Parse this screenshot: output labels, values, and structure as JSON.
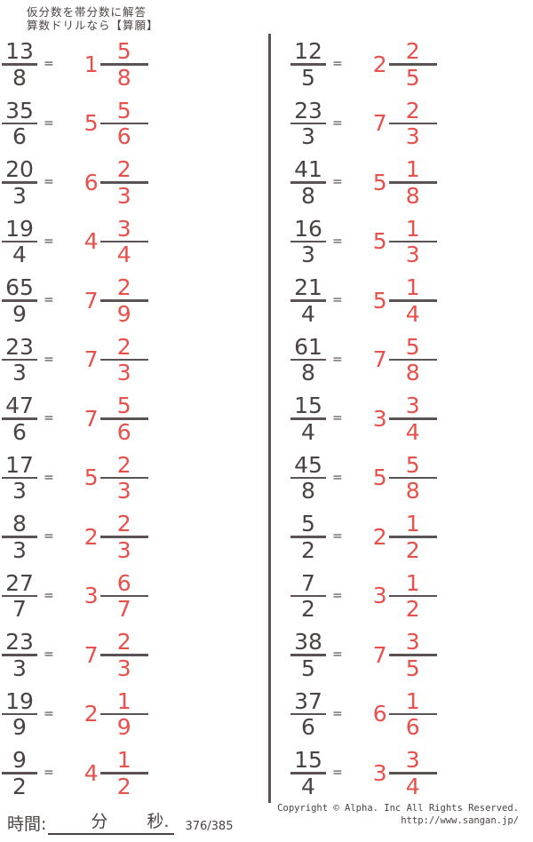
{
  "header": {
    "line1": "仮分数を帯分数に解答",
    "line2": "算数ドリルなら【算願】"
  },
  "labels": {
    "equals": "="
  },
  "colors": {
    "ink": "#4b4343",
    "answer_red": "#e8504b"
  },
  "columns": [
    {
      "side": "left",
      "problems": [
        {
          "q_num": "13",
          "q_den": "8",
          "a_whole": "1",
          "a_num": "5",
          "a_den": "8"
        },
        {
          "q_num": "35",
          "q_den": "6",
          "a_whole": "5",
          "a_num": "5",
          "a_den": "6"
        },
        {
          "q_num": "20",
          "q_den": "3",
          "a_whole": "6",
          "a_num": "2",
          "a_den": "3"
        },
        {
          "q_num": "19",
          "q_den": "4",
          "a_whole": "4",
          "a_num": "3",
          "a_den": "4"
        },
        {
          "q_num": "65",
          "q_den": "9",
          "a_whole": "7",
          "a_num": "2",
          "a_den": "9"
        },
        {
          "q_num": "23",
          "q_den": "3",
          "a_whole": "7",
          "a_num": "2",
          "a_den": "3"
        },
        {
          "q_num": "47",
          "q_den": "6",
          "a_whole": "7",
          "a_num": "5",
          "a_den": "6"
        },
        {
          "q_num": "17",
          "q_den": "3",
          "a_whole": "5",
          "a_num": "2",
          "a_den": "3"
        },
        {
          "q_num": "8",
          "q_den": "3",
          "a_whole": "2",
          "a_num": "2",
          "a_den": "3"
        },
        {
          "q_num": "27",
          "q_den": "7",
          "a_whole": "3",
          "a_num": "6",
          "a_den": "7"
        },
        {
          "q_num": "23",
          "q_den": "3",
          "a_whole": "7",
          "a_num": "2",
          "a_den": "3"
        },
        {
          "q_num": "19",
          "q_den": "9",
          "a_whole": "2",
          "a_num": "1",
          "a_den": "9"
        },
        {
          "q_num": "9",
          "q_den": "2",
          "a_whole": "4",
          "a_num": "1",
          "a_den": "2"
        }
      ]
    },
    {
      "side": "right",
      "problems": [
        {
          "q_num": "12",
          "q_den": "5",
          "a_whole": "2",
          "a_num": "2",
          "a_den": "5"
        },
        {
          "q_num": "23",
          "q_den": "3",
          "a_whole": "7",
          "a_num": "2",
          "a_den": "3"
        },
        {
          "q_num": "41",
          "q_den": "8",
          "a_whole": "5",
          "a_num": "1",
          "a_den": "8"
        },
        {
          "q_num": "16",
          "q_den": "3",
          "a_whole": "5",
          "a_num": "1",
          "a_den": "3"
        },
        {
          "q_num": "21",
          "q_den": "4",
          "a_whole": "5",
          "a_num": "1",
          "a_den": "4"
        },
        {
          "q_num": "61",
          "q_den": "8",
          "a_whole": "7",
          "a_num": "5",
          "a_den": "8"
        },
        {
          "q_num": "15",
          "q_den": "4",
          "a_whole": "3",
          "a_num": "3",
          "a_den": "4"
        },
        {
          "q_num": "45",
          "q_den": "8",
          "a_whole": "5",
          "a_num": "5",
          "a_den": "8"
        },
        {
          "q_num": "5",
          "q_den": "2",
          "a_whole": "2",
          "a_num": "1",
          "a_den": "2"
        },
        {
          "q_num": "7",
          "q_den": "2",
          "a_whole": "3",
          "a_num": "1",
          "a_den": "2"
        },
        {
          "q_num": "38",
          "q_den": "5",
          "a_whole": "7",
          "a_num": "3",
          "a_den": "5"
        },
        {
          "q_num": "37",
          "q_den": "6",
          "a_whole": "6",
          "a_num": "1",
          "a_den": "6"
        },
        {
          "q_num": "15",
          "q_den": "4",
          "a_whole": "3",
          "a_num": "3",
          "a_den": "4"
        }
      ]
    }
  ],
  "footer": {
    "time_label": "時間:",
    "minutes_label": "分",
    "seconds_label": "秒.",
    "page": "376/385",
    "copyright": "Copyright ©  Alpha. Inc All Rights Reserved.",
    "url": "http://www.sangan.jp/"
  }
}
